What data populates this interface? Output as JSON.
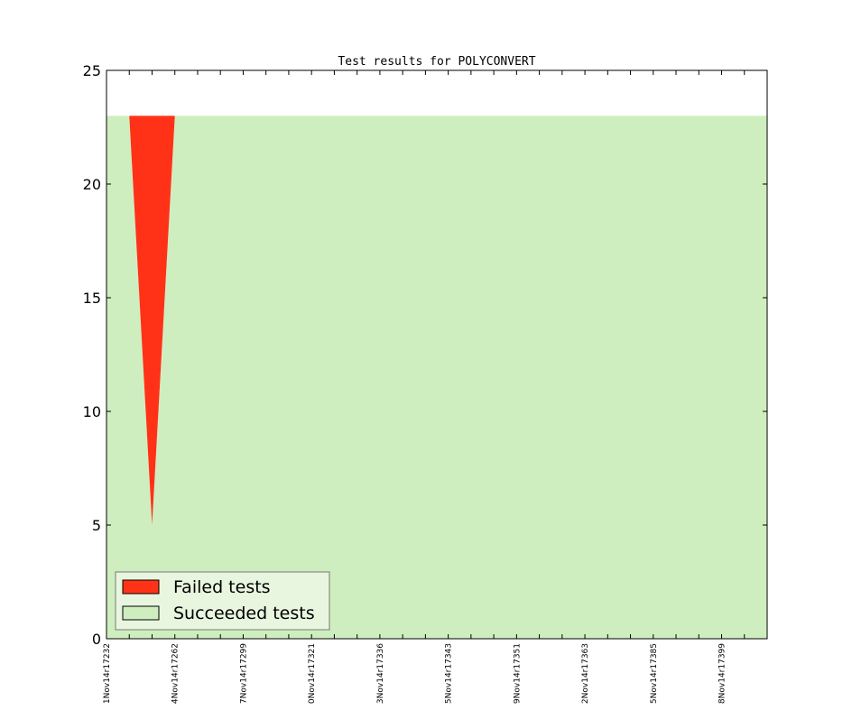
{
  "chart_data": {
    "type": "stacked_area",
    "title": "Test results for POLYCONVERT",
    "categories": [
      "1Nov14r17232",
      null,
      null,
      "4Nov14r17262",
      null,
      null,
      "7Nov14r17299",
      null,
      null,
      "0Nov14r17321",
      null,
      null,
      "3Nov14r17336",
      null,
      null,
      "5Nov14r17343",
      null,
      null,
      "9Nov14r17351",
      null,
      null,
      "2Nov14r17363",
      null,
      null,
      "5Nov14r17385",
      null,
      null,
      "8Nov14r17399",
      null,
      null
    ],
    "series": [
      {
        "name": "Failed tests",
        "color": "#ff3218",
        "values": [
          0,
          0,
          18,
          0,
          0,
          0,
          0,
          0,
          0,
          0,
          0,
          0,
          0,
          0,
          0,
          0,
          0,
          0,
          0,
          0,
          0,
          0,
          0,
          0,
          0,
          0,
          0,
          0,
          0,
          0
        ]
      },
      {
        "name": "Succeeded tests",
        "color": "#cfeebf",
        "values": [
          23,
          23,
          5,
          23,
          23,
          23,
          23,
          23,
          23,
          23,
          23,
          23,
          23,
          23,
          23,
          23,
          23,
          23,
          23,
          23,
          23,
          23,
          23,
          23,
          23,
          23,
          23,
          23,
          23,
          23
        ]
      }
    ],
    "ylim": [
      0,
      25
    ],
    "yticks": [
      0,
      5,
      10,
      15,
      20,
      25
    ],
    "legend": "lower left"
  }
}
